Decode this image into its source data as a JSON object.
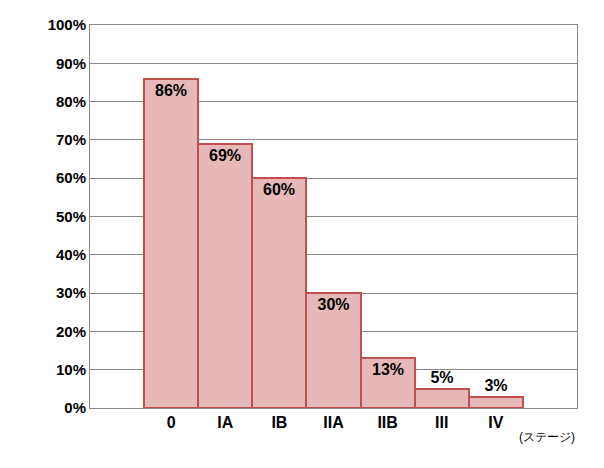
{
  "chart_data": {
    "type": "bar",
    "x_label": "(ステージ)",
    "categories": [
      null,
      "0",
      "IA",
      "IB",
      "IIA",
      "IIB",
      "III",
      "IV",
      null
    ],
    "values": [
      null,
      86,
      69,
      60,
      30,
      13,
      5,
      3,
      null
    ],
    "value_labels": [
      null,
      "86%",
      "69%",
      "60%",
      "30%",
      "13%",
      "5%",
      "3%",
      null
    ],
    "data_labels": true,
    "color": "#e6b9b8",
    "ylim": [
      0,
      100
    ],
    "yticks": [
      {
        "value": 0,
        "label": "0%"
      },
      {
        "value": 10,
        "label": "10%"
      },
      {
        "value": 20,
        "label": "20%"
      },
      {
        "value": 30,
        "label": "30%"
      },
      {
        "value": 40,
        "label": "40%"
      },
      {
        "value": 50,
        "label": "50%"
      },
      {
        "value": 60,
        "label": "60%"
      },
      {
        "value": 70,
        "label": "70%"
      },
      {
        "value": 80,
        "label": "80%"
      },
      {
        "value": 90,
        "label": "90%"
      },
      {
        "value": 100,
        "label": "100%"
      }
    ],
    "grid": true
  }
}
